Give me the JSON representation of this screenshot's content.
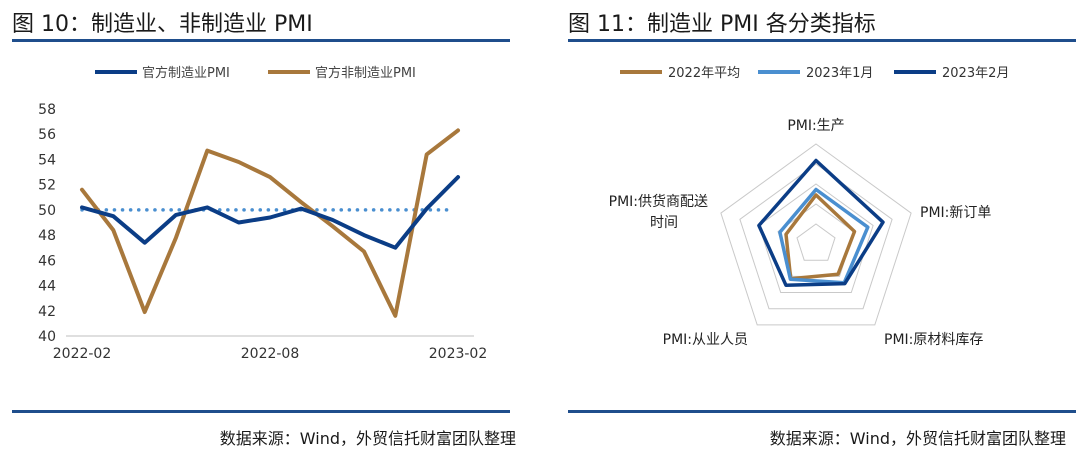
{
  "left": {
    "title": "图 10：制造业、非制造业 PMI",
    "source": "数据来源：Wind，外贸信托财富团队整理"
  },
  "right": {
    "title": "图 11：制造业 PMI 各分类指标",
    "source": "数据来源：Wind，外贸信托财富团队整理"
  },
  "colors": {
    "navy": "#0b3d86",
    "brown": "#a8783c",
    "lightblue": "#4a8fd0",
    "dots": "#4a8fd0",
    "rule": "#1f4e8c"
  },
  "chart_data": [
    {
      "type": "line",
      "x": [
        "2022-02",
        "2022-03",
        "2022-04",
        "2022-05",
        "2022-06",
        "2022-07",
        "2022-08",
        "2022-09",
        "2022-10",
        "2022-11",
        "2022-12",
        "2023-01",
        "2023-02"
      ],
      "x_tick_labels": [
        "2022-02",
        "2022-08",
        "2023-02"
      ],
      "series": [
        {
          "name": "官方制造业PMI",
          "color": "#0b3d86",
          "values": [
            50.2,
            49.5,
            47.4,
            49.6,
            50.2,
            49.0,
            49.4,
            50.1,
            49.2,
            48.0,
            47.0,
            50.1,
            52.6
          ]
        },
        {
          "name": "官方非制造业PMI",
          "color": "#a8783c",
          "values": [
            51.6,
            48.4,
            41.9,
            47.8,
            54.7,
            53.8,
            52.6,
            50.6,
            48.7,
            46.7,
            41.6,
            54.4,
            56.3
          ]
        }
      ],
      "reference_line": 50,
      "ylim": [
        40,
        58
      ],
      "y_ticks": [
        40,
        42,
        44,
        46,
        48,
        50,
        52,
        54,
        56,
        58
      ],
      "legend": "top"
    },
    {
      "type": "radar",
      "axes": [
        "PMI:生产",
        "PMI:新订单",
        "PMI:原材料库存",
        "PMI:从业人员",
        "PMI:供货商配送时间"
      ],
      "axis_label_lines": [
        [
          "PMI:生产"
        ],
        [
          "PMI:新订单"
        ],
        [
          "PMI:原材料库存"
        ],
        [
          "PMI:从业人员"
        ],
        [
          "PMI:供货商配送",
          "时间"
        ]
      ],
      "range": [
        40,
        60
      ],
      "rings": 5,
      "series": [
        {
          "name": "2022年平均",
          "color": "#a8783c",
          "values": [
            49.8,
            48.1,
            47.5,
            48.6,
            46.3
          ]
        },
        {
          "name": "2023年1月",
          "color": "#4a8fd0",
          "values": [
            50.9,
            50.9,
            49.6,
            48.7,
            47.6
          ]
        },
        {
          "name": "2023年2月",
          "color": "#0b3d86",
          "values": [
            56.7,
            54.1,
            49.8,
            50.2,
            52.0
          ]
        }
      ],
      "legend": "top"
    }
  ]
}
